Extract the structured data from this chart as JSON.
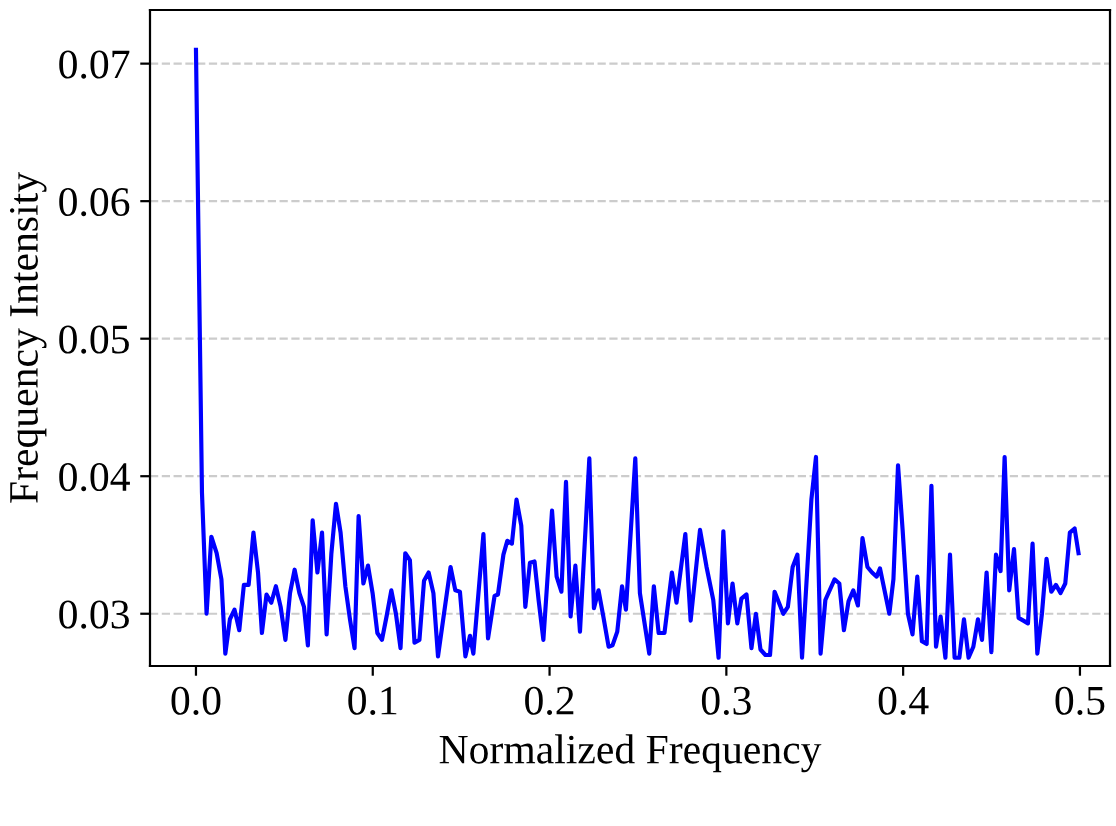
{
  "chart_data": {
    "type": "line",
    "xlabel": "Normalized Frequency",
    "ylabel": "Frequency Intensity",
    "x": [
      0,
      0.0034,
      0.006,
      0.0087,
      0.0117,
      0.0144,
      0.0166,
      0.0192,
      0.0218,
      0.0245,
      0.0271,
      0.0298,
      0.0325,
      0.0351,
      0.0373,
      0.0399,
      0.0426,
      0.0452,
      0.0479,
      0.0506,
      0.0532,
      0.0558,
      0.0585,
      0.0611,
      0.0633,
      0.066,
      0.0687,
      0.0713,
      0.0739,
      0.0766,
      0.0792,
      0.0818,
      0.0845,
      0.0871,
      0.0897,
      0.092,
      0.0947,
      0.0973,
      0.0999,
      0.1026,
      0.1052,
      0.1078,
      0.1105,
      0.1131,
      0.1157,
      0.1184,
      0.121,
      0.1236,
      0.1264,
      0.129,
      0.1316,
      0.1343,
      0.1369,
      0.144,
      0.1467,
      0.1493,
      0.1524,
      0.155,
      0.1569,
      0.1626,
      0.1652,
      0.1689,
      0.1708,
      0.1739,
      0.1761,
      0.1787,
      0.1813,
      0.184,
      0.1863,
      0.1889,
      0.1915,
      0.1938,
      0.1965,
      0.2014,
      0.204,
      0.2067,
      0.2093,
      0.2119,
      0.2146,
      0.2172,
      0.2225,
      0.2251,
      0.2277,
      0.2304,
      0.2334,
      0.2356,
      0.2383,
      0.241,
      0.2432,
      0.2485,
      0.2511,
      0.2564,
      0.259,
      0.2617,
      0.265,
      0.2692,
      0.2718,
      0.2768,
      0.2798,
      0.2851,
      0.2888,
      0.2926,
      0.2956,
      0.2983,
      0.3009,
      0.3035,
      0.3062,
      0.3085,
      0.3114,
      0.3142,
      0.3167,
      0.3193,
      0.3221,
      0.3247,
      0.3273,
      0.3322,
      0.3348,
      0.3375,
      0.3402,
      0.3428,
      0.3481,
      0.3507,
      0.3533,
      0.356,
      0.3612,
      0.3639,
      0.3665,
      0.3691,
      0.3718,
      0.3744,
      0.377,
      0.3798,
      0.3824,
      0.385,
      0.3869,
      0.3922,
      0.3945,
      0.3971,
      0.3997,
      0.4027,
      0.4053,
      0.408,
      0.4106,
      0.4133,
      0.416,
      0.4186,
      0.4212,
      0.4239,
      0.4265,
      0.4291,
      0.4318,
      0.4344,
      0.437,
      0.4397,
      0.4423,
      0.4446,
      0.4472,
      0.4499,
      0.4525,
      0.4551,
      0.4574,
      0.46,
      0.4627,
      0.4653,
      0.468,
      0.4706,
      0.4732,
      0.4759,
      0.4785,
      0.4811,
      0.4838,
      0.4864,
      0.489,
      0.4917,
      0.4943,
      0.497,
      0.4992
    ],
    "series": [
      {
        "color": "#0000ff",
        "values": [
          0.071,
          0.0388,
          0.03,
          0.0356,
          0.0344,
          0.0325,
          0.0271,
          0.0296,
          0.0303,
          0.0288,
          0.0321,
          0.0321,
          0.0359,
          0.033,
          0.0286,
          0.0314,
          0.0308,
          0.032,
          0.0305,
          0.0281,
          0.0315,
          0.0332,
          0.0315,
          0.0305,
          0.0277,
          0.0368,
          0.033,
          0.0359,
          0.0285,
          0.0344,
          0.038,
          0.0359,
          0.032,
          0.0296,
          0.0275,
          0.0371,
          0.0322,
          0.0335,
          0.0315,
          0.0286,
          0.0281,
          0.0298,
          0.0317,
          0.03,
          0.0275,
          0.0344,
          0.0339,
          0.0279,
          0.0281,
          0.0324,
          0.033,
          0.0315,
          0.0269,
          0.0334,
          0.0317,
          0.0316,
          0.0269,
          0.0284,
          0.0271,
          0.0358,
          0.0282,
          0.0313,
          0.0314,
          0.0343,
          0.0353,
          0.0351,
          0.0383,
          0.0364,
          0.0305,
          0.0337,
          0.0338,
          0.031,
          0.0281,
          0.0375,
          0.0327,
          0.0316,
          0.0396,
          0.0298,
          0.0335,
          0.0287,
          0.0413,
          0.0304,
          0.0317,
          0.0298,
          0.0276,
          0.0277,
          0.0287,
          0.032,
          0.0303,
          0.0413,
          0.0315,
          0.0271,
          0.032,
          0.0286,
          0.0286,
          0.033,
          0.0308,
          0.0358,
          0.0295,
          0.0361,
          0.0334,
          0.031,
          0.0268,
          0.036,
          0.0293,
          0.0322,
          0.0293,
          0.0311,
          0.0314,
          0.0275,
          0.03,
          0.0274,
          0.027,
          0.027,
          0.0316,
          0.03,
          0.0305,
          0.0334,
          0.0343,
          0.0268,
          0.0383,
          0.0414,
          0.0271,
          0.031,
          0.0325,
          0.0322,
          0.0288,
          0.0309,
          0.0317,
          0.0306,
          0.0355,
          0.0334,
          0.033,
          0.0327,
          0.0333,
          0.03,
          0.0325,
          0.0408,
          0.0361,
          0.03,
          0.0285,
          0.0327,
          0.028,
          0.0278,
          0.0393,
          0.0276,
          0.0298,
          0.0268,
          0.0343,
          0.0268,
          0.0268,
          0.0296,
          0.0268,
          0.0276,
          0.0296,
          0.0281,
          0.033,
          0.0272,
          0.0343,
          0.0331,
          0.0414,
          0.0317,
          0.0347,
          0.0297,
          0.0295,
          0.0293,
          0.0351,
          0.0271,
          0.03,
          0.034,
          0.0316,
          0.0321,
          0.0315,
          0.0322,
          0.0359,
          0.0362,
          0.0344
        ]
      }
    ],
    "xlim": [
      -0.026,
      0.517
    ],
    "ylim": [
      0.0262,
      0.0739
    ],
    "xticks": [
      {
        "value": 0,
        "label": "0.0"
      },
      0.1,
      0.2,
      0.3,
      0.4,
      0.5
    ],
    "yticks": [
      0.03,
      0.04,
      0.05,
      0.06,
      0.07
    ],
    "grid": "y",
    "line_style": "solid",
    "marker": "none"
  }
}
